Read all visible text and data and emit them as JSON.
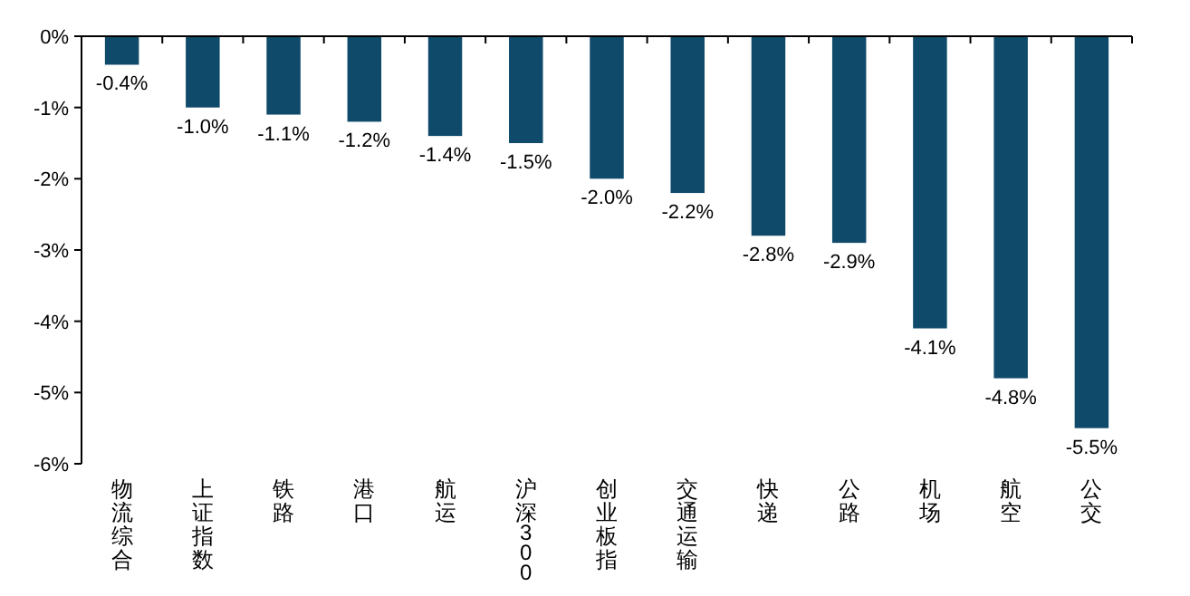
{
  "chart_data": {
    "type": "bar",
    "categories": [
      "物流综合",
      "上证指数",
      "铁路",
      "港口",
      "航运",
      "沪深300",
      "创业板指",
      "交通运输",
      "快递",
      "公路",
      "机场",
      "航空",
      "公交"
    ],
    "values": [
      -0.4,
      -1.0,
      -1.1,
      -1.2,
      -1.4,
      -1.5,
      -2.0,
      -2.2,
      -2.8,
      -2.9,
      -4.1,
      -4.8,
      -5.5
    ],
    "value_labels": [
      "-0.4%",
      "-1.0%",
      "-1.1%",
      "-1.2%",
      "-1.4%",
      "-1.5%",
      "-2.0%",
      "-2.2%",
      "-2.8%",
      "-2.9%",
      "-4.1%",
      "-4.8%",
      "-5.5%"
    ],
    "color": "#0f4a6b",
    "ylim": [
      -6,
      0
    ],
    "yticks": [
      {
        "value": 0,
        "label": "0%"
      },
      {
        "value": -1,
        "label": "-1%"
      },
      {
        "value": -2,
        "label": "-2%"
      },
      {
        "value": -3,
        "label": "-3%"
      },
      {
        "value": -4,
        "label": "-4%"
      },
      {
        "value": -5,
        "label": "-5%"
      },
      {
        "value": -6,
        "label": "-6%"
      }
    ],
    "grid": false
  }
}
